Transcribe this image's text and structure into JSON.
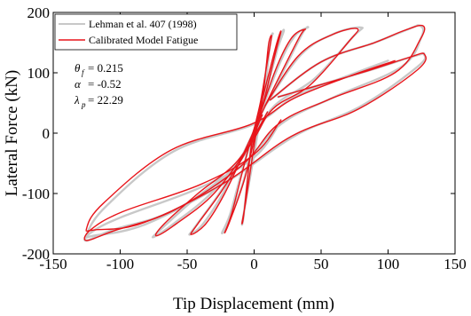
{
  "chart_data": {
    "type": "line",
    "xlabel": "Tip Displacement (mm)",
    "ylabel": "Lateral Force (kN)",
    "xlim": [
      -150,
      150
    ],
    "ylim": [
      -200,
      200
    ],
    "xticks": [
      -150,
      -100,
      -50,
      0,
      50,
      100,
      150
    ],
    "yticks": [
      -200,
      -100,
      0,
      100,
      200
    ],
    "xtick_labels": [
      "-150",
      "-100",
      "-50",
      "0",
      "50",
      "100",
      "150"
    ],
    "ytick_labels": [
      "-200",
      "-100",
      "0",
      "100",
      "200"
    ],
    "grid": false,
    "legend_position": "top-left",
    "annotations": {
      "theta_symbol": "θ",
      "theta_sub": "f",
      "theta_value": "= 0.215",
      "alpha_symbol": "α",
      "alpha_value": "= -0.52",
      "lambda_symbol": "λ",
      "lambda_sub": "p",
      "lambda_value": "= 22.29"
    },
    "series": [
      {
        "name": "Lehman et al. 407 (1998)",
        "color": "#c8c8c8",
        "cycles": [
          [
            [
              -2,
              -15
            ],
            [
              3,
              20
            ],
            [
              6,
              45
            ],
            [
              8,
              70
            ],
            [
              10,
              110
            ],
            [
              12,
              150
            ],
            [
              14,
              165
            ],
            [
              12,
              150
            ],
            [
              6,
              60
            ],
            [
              2,
              20
            ],
            [
              -2,
              -20
            ],
            [
              -4,
              -60
            ],
            [
              -6,
              -100
            ],
            [
              -8,
              -140
            ],
            [
              -9,
              -150
            ],
            [
              -6,
              -110
            ],
            [
              0,
              -35
            ],
            [
              4,
              20
            ]
          ],
          [
            [
              0,
              0
            ],
            [
              8,
              60
            ],
            [
              16,
              130
            ],
            [
              22,
              168
            ],
            [
              20,
              160
            ],
            [
              12,
              95
            ],
            [
              4,
              35
            ],
            [
              -2,
              -10
            ],
            [
              -10,
              -70
            ],
            [
              -18,
              -135
            ],
            [
              -24,
              -165
            ],
            [
              -20,
              -150
            ],
            [
              -8,
              -80
            ],
            [
              2,
              10
            ]
          ],
          [
            [
              2,
              15
            ],
            [
              18,
              110
            ],
            [
              30,
              160
            ],
            [
              40,
              175
            ],
            [
              36,
              165
            ],
            [
              20,
              95
            ],
            [
              6,
              35
            ],
            [
              -4,
              -15
            ],
            [
              -22,
              -95
            ],
            [
              -38,
              -150
            ],
            [
              -48,
              -168
            ],
            [
              -44,
              -155
            ],
            [
              -26,
              -100
            ],
            [
              -6,
              -30
            ],
            [
              6,
              30
            ]
          ],
          [
            [
              8,
              45
            ],
            [
              35,
              130
            ],
            [
              60,
              165
            ],
            [
              80,
              175
            ],
            [
              74,
              160
            ],
            [
              45,
              90
            ],
            [
              15,
              45
            ],
            [
              -2,
              -15
            ],
            [
              -30,
              -95
            ],
            [
              -60,
              -150
            ],
            [
              -75,
              -172
            ],
            [
              -70,
              -160
            ],
            [
              -45,
              -110
            ],
            [
              -12,
              -50
            ],
            [
              10,
              35
            ]
          ],
          [
            [
              12,
              55
            ],
            [
              50,
              118
            ],
            [
              90,
              150
            ],
            [
              115,
              172
            ],
            [
              124,
              178
            ],
            [
              125,
              160
            ],
            [
              110,
              110
            ],
            [
              60,
              60
            ],
            [
              20,
              15
            ],
            [
              -10,
              -55
            ],
            [
              -60,
              -128
            ],
            [
              -105,
              -160
            ],
            [
              -125,
              -178
            ],
            [
              -122,
              -165
            ],
            [
              -100,
              -140
            ],
            [
              -40,
              -90
            ],
            [
              0,
              -40
            ],
            [
              20,
              20
            ]
          ],
          [
            [
              18,
              60
            ],
            [
              80,
              100
            ],
            [
              120,
              128
            ],
            [
              127,
              130
            ],
            [
              122,
              110
            ],
            [
              80,
              45
            ],
            [
              30,
              -5
            ],
            [
              -20,
              -80
            ],
            [
              -80,
              -150
            ],
            [
              -120,
              -170
            ],
            [
              -125,
              -168
            ],
            [
              -110,
              -120
            ],
            [
              -60,
              -30
            ],
            [
              0,
              15
            ],
            [
              30,
              60
            ],
            [
              70,
              95
            ],
            [
              100,
              120
            ]
          ]
        ]
      },
      {
        "name": "Calibrated Model Fatigue",
        "color": "#e8151b",
        "cycles": [
          [
            [
              -2,
              -15
            ],
            [
              2,
              15
            ],
            [
              5,
              40
            ],
            [
              7,
              70
            ],
            [
              9,
              110
            ],
            [
              11,
              150
            ],
            [
              13,
              160
            ],
            [
              10,
              120
            ],
            [
              5,
              55
            ],
            [
              1,
              15
            ],
            [
              -2,
              -20
            ],
            [
              -4,
              -55
            ],
            [
              -6,
              -100
            ],
            [
              -8,
              -140
            ],
            [
              -9,
              -148
            ],
            [
              -6,
              -110
            ],
            [
              -1,
              -35
            ],
            [
              3,
              20
            ]
          ],
          [
            [
              0,
              0
            ],
            [
              8,
              60
            ],
            [
              15,
              125
            ],
            [
              20,
              168
            ],
            [
              17,
              150
            ],
            [
              10,
              90
            ],
            [
              3,
              30
            ],
            [
              -3,
              -15
            ],
            [
              -10,
              -75
            ],
            [
              -17,
              -135
            ],
            [
              -22,
              -165
            ],
            [
              -18,
              -145
            ],
            [
              -7,
              -75
            ],
            [
              2,
              10
            ]
          ],
          [
            [
              2,
              15
            ],
            [
              16,
              105
            ],
            [
              28,
              158
            ],
            [
              38,
              172
            ],
            [
              34,
              160
            ],
            [
              18,
              90
            ],
            [
              5,
              30
            ],
            [
              -5,
              -20
            ],
            [
              -22,
              -100
            ],
            [
              -36,
              -150
            ],
            [
              -47,
              -168
            ],
            [
              -42,
              -150
            ],
            [
              -24,
              -95
            ],
            [
              -6,
              -30
            ],
            [
              6,
              30
            ]
          ],
          [
            [
              8,
              45
            ],
            [
              33,
              128
            ],
            [
              58,
              163
            ],
            [
              77,
              173
            ],
            [
              70,
              150
            ],
            [
              42,
              80
            ],
            [
              14,
              40
            ],
            [
              -3,
              -20
            ],
            [
              -30,
              -100
            ],
            [
              -58,
              -150
            ],
            [
              -73,
              -170
            ],
            [
              -67,
              -150
            ],
            [
              -42,
              -100
            ],
            [
              -12,
              -45
            ],
            [
              10,
              35
            ]
          ],
          [
            [
              12,
              55
            ],
            [
              50,
              118
            ],
            [
              90,
              150
            ],
            [
              112,
              170
            ],
            [
              126,
              178
            ],
            [
              124,
              155
            ],
            [
              105,
              100
            ],
            [
              55,
              55
            ],
            [
              18,
              15
            ],
            [
              -10,
              -55
            ],
            [
              -60,
              -128
            ],
            [
              -105,
              -162
            ],
            [
              -125,
              -178
            ],
            [
              -122,
              -160
            ],
            [
              -98,
              -130
            ],
            [
              -40,
              -85
            ],
            [
              0,
              -35
            ],
            [
              20,
              22
            ]
          ],
          [
            [
              18,
              60
            ],
            [
              80,
              100
            ],
            [
              115,
              125
            ],
            [
              127,
              131
            ],
            [
              122,
              105
            ],
            [
              78,
              40
            ],
            [
              28,
              -5
            ],
            [
              -22,
              -82
            ],
            [
              -82,
              -148
            ],
            [
              -118,
              -160
            ],
            [
              -125,
              -157
            ],
            [
              -112,
              -115
            ],
            [
              -62,
              -28
            ],
            [
              -2,
              15
            ],
            [
              30,
              58
            ],
            [
              72,
              95
            ],
            [
              105,
              120
            ]
          ]
        ]
      }
    ]
  }
}
